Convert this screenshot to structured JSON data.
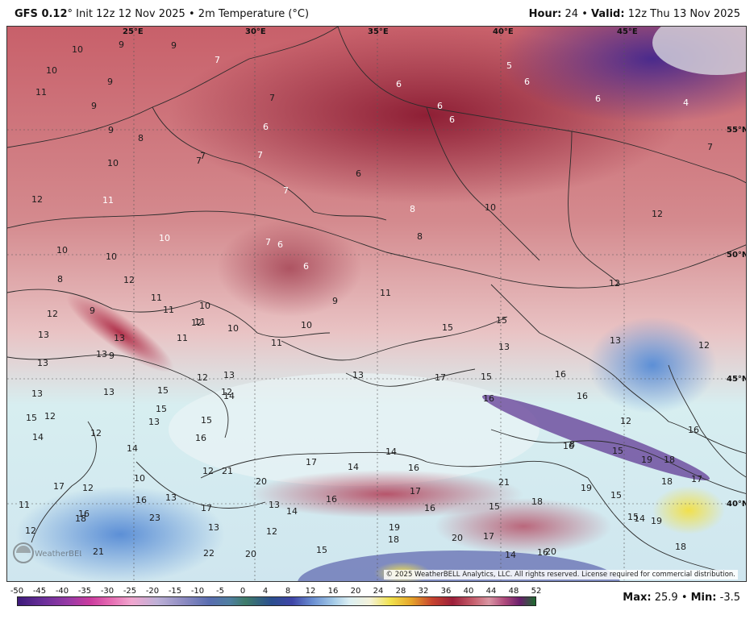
{
  "header": {
    "model": "GFS 0.12",
    "degree_symbol": "°",
    "init": "Init 12z 12 Nov 2025",
    "separator": "•",
    "product": "2m Temperature (°C)",
    "hour_label": "Hour:",
    "hour": "24",
    "valid_label": "Valid:",
    "valid": "12z Thu 13 Nov 2025"
  },
  "map": {
    "longitudes": [
      "25°E",
      "30°E",
      "35°E",
      "40°E",
      "45°E"
    ],
    "latitudes": [
      "55°N",
      "50°N",
      "45°N",
      "40°N"
    ],
    "temperature_labels": [
      "10",
      "9",
      "9",
      "10",
      "9",
      "7",
      "11",
      "9",
      "9",
      "7",
      "6",
      "6",
      "7",
      "5",
      "6",
      "6",
      "4",
      "8",
      "7",
      "7",
      "6",
      "10",
      "6",
      "7",
      "6",
      "12",
      "11",
      "7",
      "8",
      "10",
      "8",
      "10",
      "10",
      "10",
      "7",
      "6",
      "12",
      "8",
      "6",
      "12",
      "11",
      "11",
      "10",
      "11",
      "9",
      "10",
      "10",
      "11",
      "12",
      "13",
      "13",
      "12",
      "13",
      "9",
      "11",
      "11",
      "13",
      "15",
      "15",
      "9",
      "12",
      "13",
      "12",
      "13",
      "14",
      "13",
      "13",
      "12",
      "13",
      "15",
      "15",
      "13",
      "12",
      "15",
      "14",
      "13",
      "12",
      "14",
      "15",
      "12",
      "17",
      "15",
      "16",
      "16",
      "16",
      "16",
      "16",
      "8",
      "12",
      "15",
      "16",
      "12",
      "14",
      "14",
      "16",
      "17",
      "17",
      "21",
      "21",
      "20",
      "17",
      "12",
      "11",
      "12",
      "10",
      "13",
      "18",
      "16",
      "17",
      "13",
      "13",
      "14",
      "12",
      "16",
      "16",
      "15",
      "18",
      "19",
      "18",
      "17",
      "19",
      "18",
      "15",
      "14",
      "16",
      "21",
      "23",
      "22",
      "20",
      "15",
      "19",
      "18",
      "20",
      "17",
      "14",
      "16",
      "20",
      "19",
      "15",
      "18"
    ]
  },
  "copyright": "© 2025 WeatherBELL Analytics, LLC. All rights reserved. License required for commercial distribution.",
  "logo_text": "WeatherBELL",
  "scale": {
    "ticks": [
      "-50",
      "-45",
      "-40",
      "-35",
      "-30",
      "-25",
      "-20",
      "-15",
      "-10",
      "-5",
      "0",
      "4",
      "8",
      "12",
      "16",
      "20",
      "24",
      "28",
      "32",
      "36",
      "40",
      "44",
      "48",
      "52"
    ],
    "range": [
      -50,
      52
    ]
  },
  "stats": {
    "max_label": "Max:",
    "max": "25.9",
    "separator": "•",
    "min_label": "Min:",
    "min": "-3.5"
  }
}
